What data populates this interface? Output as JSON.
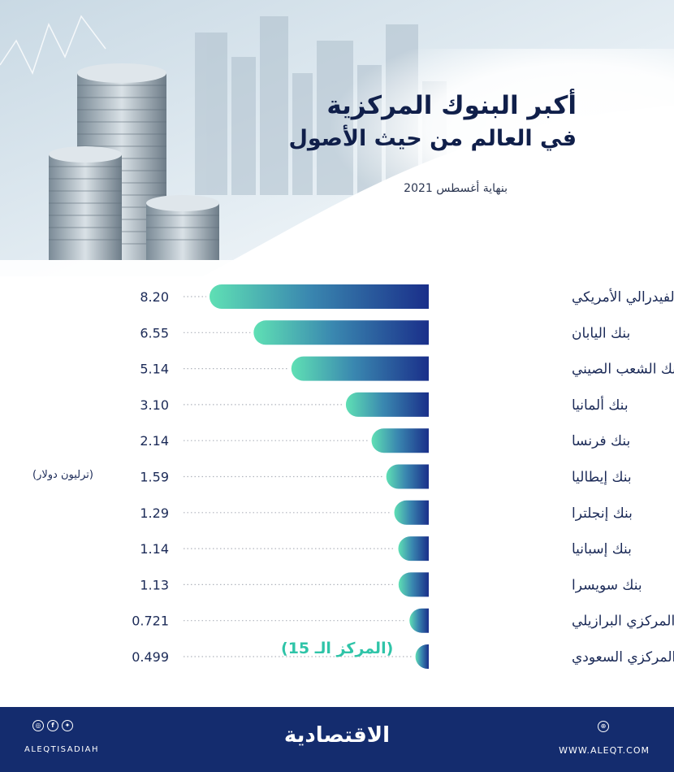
{
  "header": {
    "title_line1": "أكبر البنوك المركزية",
    "title_line2": "في العالم من حيث الأصول",
    "subtitle": "بنهاية أغسطس 2021"
  },
  "chart_data": {
    "type": "bar",
    "orientation": "horizontal",
    "categories": [
      "الفيدرالي الأمريكي",
      "بنك اليابان",
      "بنك الشعب الصيني",
      "بنك ألمانيا",
      "بنك فرنسا",
      "بنك إيطاليا",
      "بنك إنجلترا",
      "بنك إسبانيا",
      "بنك سويسرا",
      "المركزي البرازيلي",
      "المركزي السعودي"
    ],
    "value_labels": [
      "8.20",
      "6.55",
      "5.14",
      "3.10",
      "2.14",
      "1.59",
      "1.29",
      "1.14",
      "1.13",
      "0.721",
      "0.499"
    ],
    "values": [
      8.2,
      6.55,
      5.14,
      3.1,
      2.14,
      1.59,
      1.29,
      1.14,
      1.13,
      0.721,
      0.499
    ],
    "unit": "(ترليون دولار)",
    "annotation": "(المركز الـ 15)",
    "colors": {
      "bar_start": "#5fe0b4",
      "bar_end": "#1a2f8a",
      "dotted": "#b0b4bd"
    }
  },
  "footer": {
    "brand": "الاقتصادية",
    "handle": "ALEQTISADIAH",
    "website": "WWW.ALEQT.COM",
    "social_icons": [
      "instagram-icon",
      "facebook-icon",
      "twitter-icon"
    ],
    "colors": {
      "background": "#142c6e"
    }
  }
}
